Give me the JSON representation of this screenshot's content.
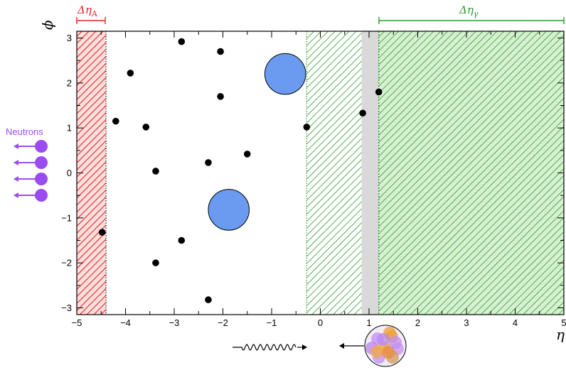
{
  "chart_data": {
    "type": "scatter",
    "xlabel": "η",
    "ylabel": "ϕ",
    "xlim": [
      -5,
      5
    ],
    "ylim": [
      -3.15,
      3.15
    ],
    "xticks": [
      "−5",
      "−4",
      "−3",
      "−2",
      "−1",
      "0",
      "1",
      "2",
      "3",
      "4",
      "5"
    ],
    "yticks": [
      "−3",
      "−2",
      "−1",
      "0",
      "1",
      "2",
      "3"
    ],
    "grid": false,
    "particles": [
      {
        "x": -4.48,
        "y": -1.32
      },
      {
        "x": -4.2,
        "y": 1.15
      },
      {
        "x": -3.9,
        "y": 2.22
      },
      {
        "x": -3.58,
        "y": 1.02
      },
      {
        "x": -3.38,
        "y": 0.04
      },
      {
        "x": -3.38,
        "y": -2.0
      },
      {
        "x": -2.85,
        "y": 2.92
      },
      {
        "x": -2.85,
        "y": -1.5
      },
      {
        "x": -2.3,
        "y": 0.23
      },
      {
        "x": -2.3,
        "y": -2.82
      },
      {
        "x": -2.05,
        "y": 2.7
      },
      {
        "x": -2.05,
        "y": 1.7
      },
      {
        "x": -1.5,
        "y": 0.42
      },
      {
        "x": -0.28,
        "y": 1.02
      },
      {
        "x": 0.87,
        "y": 1.33
      },
      {
        "x": 1.2,
        "y": 1.8
      }
    ],
    "jets": [
      {
        "x": -0.72,
        "y": 2.2,
        "r": 0.42
      },
      {
        "x": -1.88,
        "y": -0.82,
        "r": 0.42
      }
    ],
    "regions": [
      {
        "kind": "gap-A",
        "from": -5.0,
        "to": -4.4,
        "color": "#e8231f"
      },
      {
        "kind": "hatched-green",
        "from": -0.28,
        "to": 0.85,
        "color": "#2d9a2d"
      },
      {
        "kind": "grey-band",
        "from": 0.85,
        "to": 1.2,
        "color": "#d9d9d9"
      },
      {
        "kind": "gap-gamma",
        "from": 1.2,
        "to": 5.0,
        "color": "#2d9a2d"
      }
    ],
    "annotations": {
      "gap_a_label": "Δη",
      "gap_a_sub": "A",
      "gap_gamma_label": "Δη",
      "gap_gamma_sub": "γ",
      "neutrons_label": "Neutrons"
    },
    "colors": {
      "jet_fill": "#6a9bf0",
      "particle": "#000000",
      "neutron": "#9b4cf0",
      "red": "#e8231f",
      "green": "#2d9a2d"
    }
  }
}
